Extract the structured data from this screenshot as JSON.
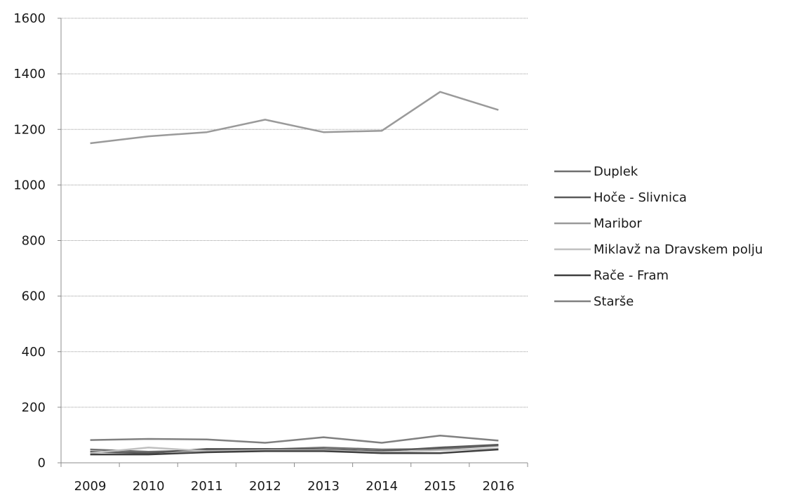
{
  "chart_data": {
    "type": "line",
    "categories": [
      "2009",
      "2010",
      "2011",
      "2012",
      "2013",
      "2014",
      "2015",
      "2016"
    ],
    "ylim": [
      0,
      1600
    ],
    "yticks": [
      "0",
      "200",
      "400",
      "600",
      "800",
      "1000",
      "1200",
      "1400",
      "1600"
    ],
    "grid": true,
    "legend_position": "right",
    "series": [
      {
        "name": "Duplek",
        "color": "#6f6f6f",
        "values": [
          48,
          40,
          45,
          48,
          55,
          48,
          50,
          62
        ]
      },
      {
        "name": "Hoče - Slivnica",
        "color": "#5a5a5a",
        "values": [
          40,
          35,
          50,
          50,
          48,
          42,
          55,
          65
        ]
      },
      {
        "name": "Maribor",
        "color": "#9a9a9a",
        "values": [
          1150,
          1175,
          1190,
          1235,
          1190,
          1195,
          1335,
          1270
        ]
      },
      {
        "name": "Miklavž na Dravskem polju",
        "color": "#c0c0c0",
        "values": [
          35,
          55,
          42,
          45,
          45,
          38,
          45,
          52
        ]
      },
      {
        "name": "Rače - Fram",
        "color": "#3f3f3f",
        "values": [
          30,
          30,
          38,
          42,
          42,
          35,
          35,
          48
        ]
      },
      {
        "name": "Starše",
        "color": "#808080",
        "values": [
          82,
          86,
          84,
          72,
          92,
          72,
          98,
          80
        ]
      }
    ]
  }
}
